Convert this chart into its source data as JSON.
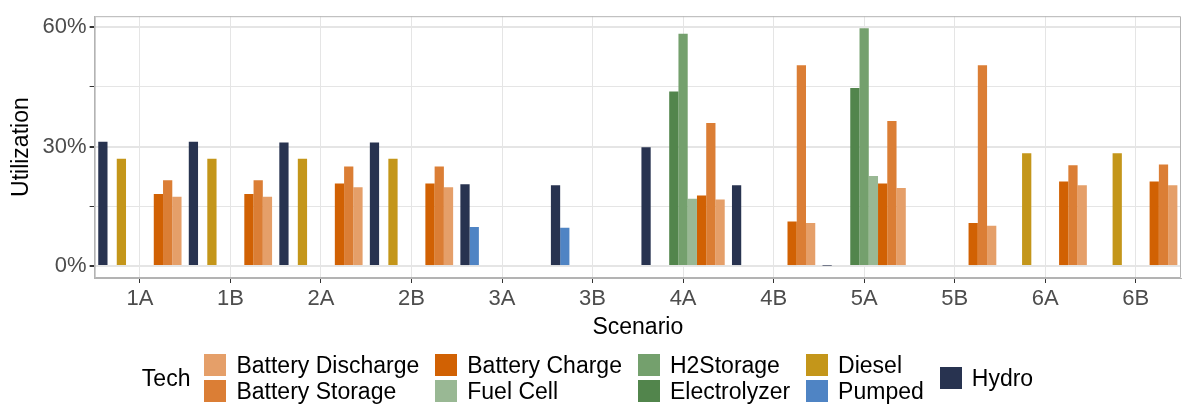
{
  "chart_data": {
    "type": "bar",
    "xlabel": "Scenario",
    "ylabel": "Utilization",
    "legend_title": "Tech",
    "legend": "bottom",
    "grid": true,
    "categories": [
      "1A",
      "1B",
      "2A",
      "2B",
      "3A",
      "3B",
      "4A",
      "4B",
      "5A",
      "5B",
      "6A",
      "6B"
    ],
    "ylim": [
      -3,
      62.7
    ],
    "yticks": [
      {
        "value": 0,
        "label": "0%"
      },
      {
        "value": 15,
        "label": null
      },
      {
        "value": 30,
        "label": "30%"
      },
      {
        "value": 45,
        "label": null
      },
      {
        "value": 60,
        "label": "60%"
      }
    ],
    "series": [
      {
        "name": "Hydro",
        "color": "#283350",
        "values": [
          31.2,
          31.2,
          31.0,
          31.0,
          20.5,
          20.3,
          29.8,
          20.3,
          0.1,
          0,
          0,
          0
        ]
      },
      {
        "name": "Pumped",
        "color": "#4f84c4",
        "values": [
          0,
          0,
          0,
          0,
          9.8,
          9.6,
          0,
          0,
          0,
          0,
          0,
          0
        ]
      },
      {
        "name": "Diesel",
        "color": "#c4961a",
        "values": [
          26.9,
          26.9,
          26.9,
          26.9,
          0,
          0,
          0,
          0,
          0,
          0,
          28.3,
          28.3
        ]
      },
      {
        "name": "Electrolyzer",
        "color": "#52854c",
        "values": [
          0,
          0,
          0,
          0,
          0,
          0,
          43.8,
          0,
          44.7,
          0,
          0,
          0
        ]
      },
      {
        "name": "H2Storage",
        "color": "#74a06d",
        "values": [
          0,
          0,
          0,
          0,
          0,
          0,
          58.3,
          0,
          59.7,
          0,
          0,
          0
        ]
      },
      {
        "name": "Fuel Cell",
        "color": "#99b894",
        "values": [
          0,
          0,
          0,
          0,
          0,
          0,
          16.9,
          0,
          22.6,
          0,
          0,
          0
        ]
      },
      {
        "name": "Battery Charge",
        "color": "#d16103",
        "values": [
          18.1,
          18.1,
          20.7,
          20.7,
          0,
          0,
          17.7,
          11.2,
          20.7,
          10.8,
          21.2,
          21.2
        ]
      },
      {
        "name": "Battery Storage",
        "color": "#db7e35",
        "values": [
          21.5,
          21.5,
          25.0,
          25.0,
          0,
          0,
          35.9,
          50.4,
          36.4,
          50.4,
          25.3,
          25.5
        ]
      },
      {
        "name": "Battery Discharge",
        "color": "#e59f69",
        "values": [
          17.4,
          17.4,
          19.8,
          19.8,
          0,
          0,
          16.7,
          10.8,
          19.6,
          10.1,
          20.3,
          20.3
        ]
      }
    ]
  }
}
